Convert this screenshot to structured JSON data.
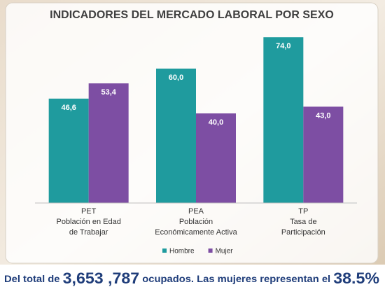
{
  "chart_data": {
    "type": "bar",
    "title": "INDICADORES DEL MERCADO LABORAL POR SEXO",
    "categories": [
      [
        "PET",
        "Población en Edad",
        "de Trabajar"
      ],
      [
        "PEA",
        "Población",
        "Económicamente Activa"
      ],
      [
        "TP",
        "Tasa de",
        "Participación"
      ]
    ],
    "series": [
      {
        "name": "Hombre",
        "color": "#1f9b9e",
        "values": [
          46.6,
          60.0,
          74.0
        ],
        "value_labels": [
          "46,6",
          "60,0",
          "74,0"
        ]
      },
      {
        "name": "Mujer",
        "color": "#7d4ea3",
        "values": [
          53.4,
          40.0,
          43.0
        ],
        "value_labels": [
          "53,4",
          "40,0",
          "43,0"
        ]
      }
    ],
    "ylim": [
      0,
      80
    ],
    "legend": "bottom"
  },
  "banner": {
    "parts": [
      "Del total de ",
      "3,653 ,787",
      " ocupados. Las mujeres representan el ",
      "38.5%"
    ]
  }
}
